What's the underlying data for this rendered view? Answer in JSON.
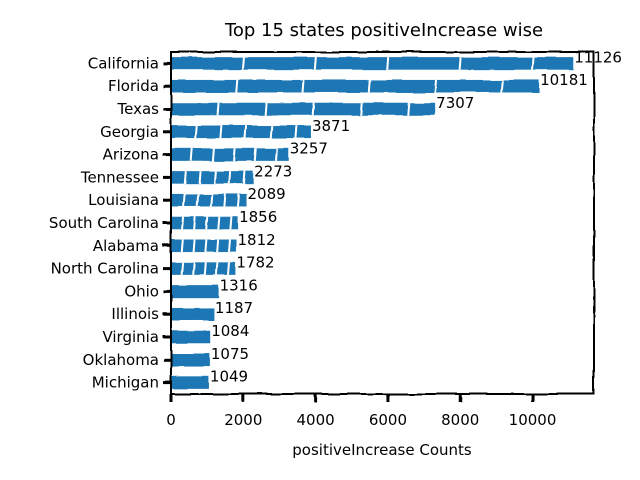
{
  "chart_data": {
    "type": "bar",
    "orientation": "horizontal",
    "title": "Top 15 states positiveIncrease wise",
    "xlabel": "positiveIncrease Counts",
    "ylabel": "",
    "categories": [
      "California",
      "Florida",
      "Texas",
      "Georgia",
      "Arizona",
      "Tennessee",
      "Louisiana",
      "South Carolina",
      "Alabama",
      "North Carolina",
      "Ohio",
      "Illinois",
      "Virginia",
      "Oklahoma",
      "Michigan"
    ],
    "values": [
      11126,
      10181,
      7307,
      3871,
      3257,
      2273,
      2089,
      1856,
      1812,
      1782,
      1316,
      1187,
      1084,
      1075,
      1049
    ],
    "xlim": [
      0,
      11700
    ],
    "xticks": [
      0,
      2000,
      4000,
      6000,
      8000,
      10000
    ],
    "grid": false,
    "legend": "none",
    "bar_color": "#1f77b4",
    "style": "hand-drawn"
  }
}
